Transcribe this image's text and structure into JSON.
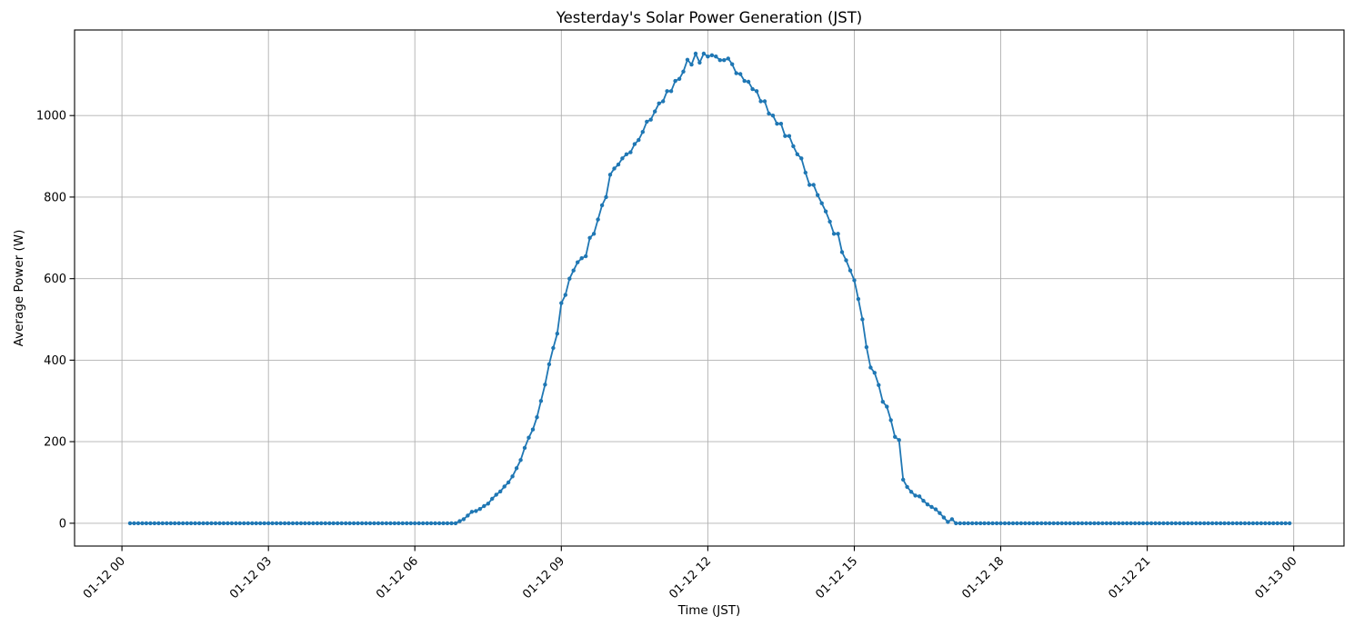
{
  "chart_data": {
    "type": "line",
    "title": "Yesterday's Solar Power Generation (JST)",
    "xlabel": "Time (JST)",
    "ylabel": "Average Power (W)",
    "grid": true,
    "legend": "none",
    "line_color": "#1f77b4",
    "grid_color": "#b0b0b0",
    "spine_color": "#000000",
    "tick_label_color": "#000000",
    "x_ticks": [
      {
        "hour": 0,
        "label": "01-12 00"
      },
      {
        "hour": 3,
        "label": "01-12 03"
      },
      {
        "hour": 6,
        "label": "01-12 06"
      },
      {
        "hour": 9,
        "label": "01-12 09"
      },
      {
        "hour": 12,
        "label": "01-12 12"
      },
      {
        "hour": 15,
        "label": "01-12 15"
      },
      {
        "hour": 18,
        "label": "01-12 18"
      },
      {
        "hour": 21,
        "label": "01-12 21"
      },
      {
        "hour": 24,
        "label": "01-13 00"
      }
    ],
    "y_ticks": [
      0,
      200,
      400,
      600,
      800,
      1000
    ],
    "xlim_hours": [
      -0.97,
      25.03
    ],
    "ylim": [
      -56,
      1210
    ],
    "series": [
      {
        "name": "Average Power (W)",
        "start_offset_minutes": 10,
        "interval_minutes": 5,
        "unit": "W",
        "values": [
          0,
          0,
          0,
          0,
          0,
          0,
          0,
          0,
          0,
          0,
          0,
          0,
          0,
          0,
          0,
          0,
          0,
          0,
          0,
          0,
          0,
          0,
          0,
          0,
          0,
          0,
          0,
          0,
          0,
          0,
          0,
          0,
          0,
          0,
          0,
          0,
          0,
          0,
          0,
          0,
          0,
          0,
          0,
          0,
          0,
          0,
          0,
          0,
          0,
          0,
          0,
          0,
          0,
          0,
          0,
          0,
          0,
          0,
          0,
          0,
          0,
          0,
          0,
          0,
          0,
          0,
          0,
          0,
          0,
          0,
          0,
          0,
          0,
          0,
          0,
          0,
          0,
          0,
          0,
          0,
          0,
          5,
          10,
          19,
          28,
          30,
          35,
          42,
          48,
          60,
          70,
          78,
          90,
          100,
          115,
          135,
          155,
          185,
          210,
          230,
          260,
          300,
          340,
          390,
          430,
          465,
          540,
          560,
          600,
          620,
          640,
          650,
          655,
          700,
          710,
          745,
          780,
          800,
          855,
          870,
          880,
          895,
          905,
          910,
          930,
          940,
          960,
          985,
          990,
          1010,
          1030,
          1035,
          1060,
          1060,
          1085,
          1090,
          1108,
          1137,
          1125,
          1152,
          1130,
          1152,
          1145,
          1148,
          1145,
          1136,
          1136,
          1140,
          1126,
          1104,
          1102,
          1085,
          1083,
          1065,
          1060,
          1035,
          1035,
          1005,
          1000,
          980,
          980,
          950,
          950,
          925,
          905,
          895,
          860,
          830,
          830,
          805,
          785,
          765,
          740,
          710,
          710,
          665,
          645,
          620,
          596,
          550,
          500,
          432,
          382,
          369,
          339,
          298,
          286,
          253,
          212,
          204,
          107,
          89,
          77,
          68,
          66,
          55,
          46,
          40,
          34,
          25,
          14,
          3,
          10,
          0,
          0,
          0,
          0,
          0,
          0,
          0,
          0,
          0,
          0,
          0,
          0,
          0,
          0,
          0,
          0,
          0,
          0,
          0,
          0,
          0,
          0,
          0,
          0,
          0,
          0,
          0,
          0,
          0,
          0,
          0,
          0,
          0,
          0,
          0,
          0,
          0,
          0,
          0,
          0,
          0,
          0,
          0,
          0,
          0,
          0,
          0,
          0,
          0,
          0,
          0,
          0,
          0,
          0,
          0,
          0,
          0,
          0,
          0,
          0,
          0,
          0,
          0,
          0,
          0,
          0,
          0,
          0,
          0,
          0,
          0,
          0,
          0,
          0,
          0,
          0,
          0,
          0,
          0,
          0,
          0,
          0,
          0
        ]
      }
    ]
  }
}
